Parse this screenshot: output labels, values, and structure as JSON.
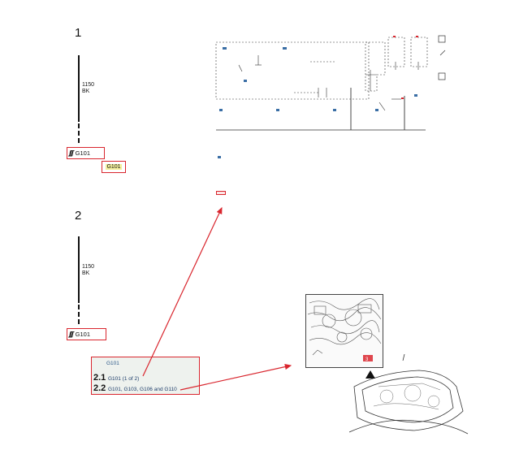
{
  "steps": [
    {
      "number": "1",
      "wire_label": "1150\nBK",
      "ground_label": "G101",
      "connector_label": "G101"
    },
    {
      "number": "2",
      "wire_label": "1150\nBK",
      "ground_label": "G101"
    }
  ],
  "callout": {
    "heading": "G101",
    "items": [
      {
        "index": "2.1",
        "text": "G101 (1 of 2)"
      },
      {
        "index": "2.2",
        "text": "G101, G103, G106 and G110"
      }
    ]
  },
  "colors": {
    "highlight_red": "#d9262e",
    "connector_fill": "#f3ef9e",
    "link_blue": "#1e3e6a"
  },
  "icons": [
    "ground-symbol-icon",
    "arrow-icon",
    "hood-open-icon"
  ]
}
